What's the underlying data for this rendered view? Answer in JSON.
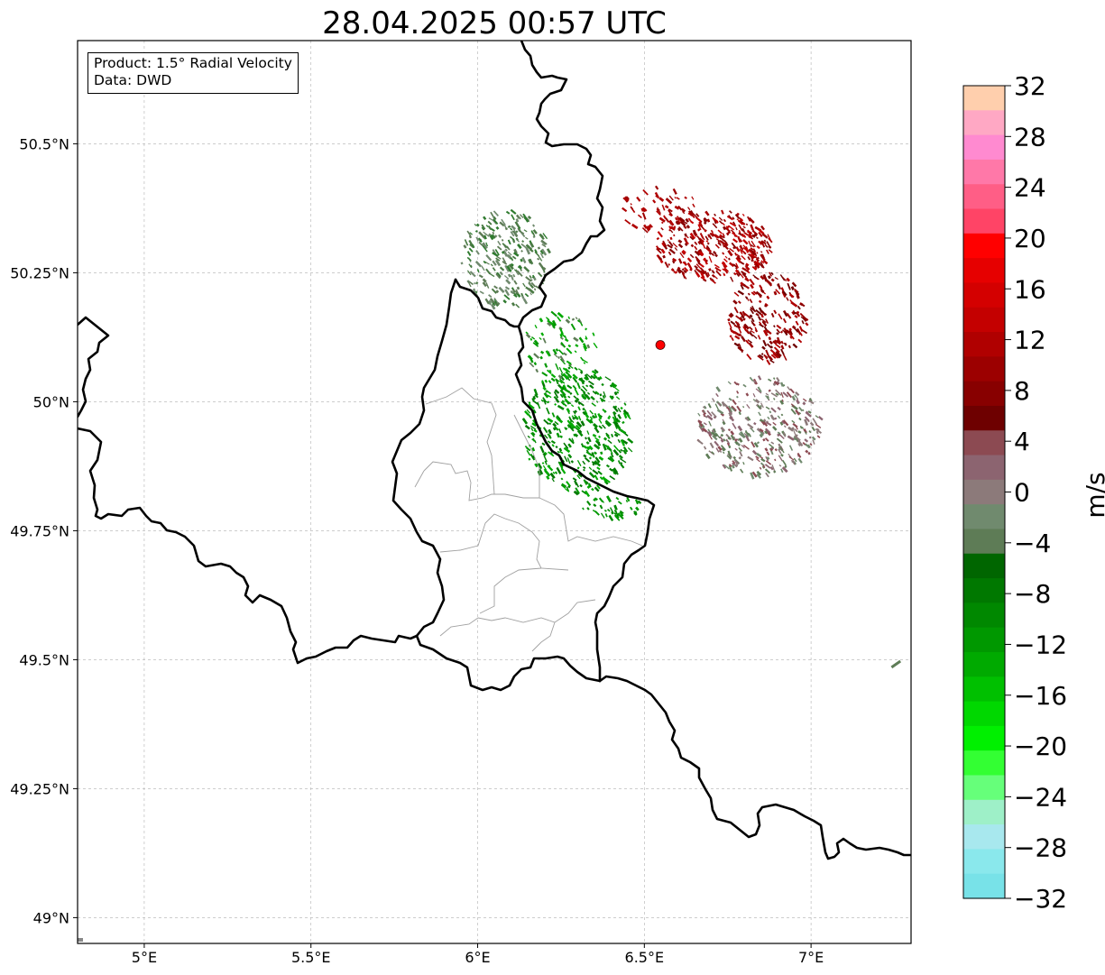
{
  "title": "28.04.2025 00:57 UTC",
  "info_box": {
    "product_line": "Product: 1.5° Radial Velocity",
    "data_line": "Data: DWD"
  },
  "map": {
    "lon_range": [
      4.8,
      7.3
    ],
    "lat_range": [
      48.95,
      50.7
    ],
    "lon_ticks": [
      {
        "value": 5.0,
        "label": "5°E"
      },
      {
        "value": 5.5,
        "label": "5.5°E"
      },
      {
        "value": 6.0,
        "label": "6°E"
      },
      {
        "value": 6.5,
        "label": "6.5°E"
      },
      {
        "value": 7.0,
        "label": "7°E"
      }
    ],
    "lat_ticks": [
      {
        "value": 50.5,
        "label": "50.5°N"
      },
      {
        "value": 50.25,
        "label": "50.25°N"
      },
      {
        "value": 50.0,
        "label": "50°N"
      },
      {
        "value": 49.75,
        "label": "49.75°N"
      },
      {
        "value": 49.5,
        "label": "49.5°N"
      },
      {
        "value": 49.25,
        "label": "49.25°N"
      },
      {
        "value": 49.0,
        "label": "49°N"
      }
    ],
    "grid": "dashed",
    "radar_site": {
      "lon": 6.548,
      "lat": 50.11,
      "color": "#ff0000"
    },
    "border_color": "#000000",
    "district_color": "#a0a0a0"
  },
  "colorbar": {
    "unit": "m/s",
    "range": [
      -32,
      32
    ],
    "step": 2,
    "tick_values": [
      32,
      28,
      24,
      20,
      16,
      12,
      8,
      4,
      0,
      -4,
      -8,
      -12,
      -16,
      -20,
      -24,
      -28,
      -32
    ],
    "tick_labels": [
      "32",
      "28",
      "24",
      "20",
      "16",
      "12",
      "8",
      "4",
      "0",
      "−4",
      "−8",
      "−12",
      "−16",
      "−20",
      "−24",
      "−28",
      "−32"
    ],
    "colors_top_to_bottom": [
      "#ffcfad",
      "#ffa8c4",
      "#ff8ad0",
      "#ff78a8",
      "#ff5e86",
      "#ff4466",
      "#ff0000",
      "#e60000",
      "#d40000",
      "#c40000",
      "#b00000",
      "#9c0000",
      "#880000",
      "#6e0000",
      "#8c4a52",
      "#8c6470",
      "#8c7a7a",
      "#708a6e",
      "#5e7c56",
      "#006600",
      "#007800",
      "#008800",
      "#009800",
      "#00aa00",
      "#00c000",
      "#00d800",
      "#00f000",
      "#33ff33",
      "#66ff7a",
      "#9ef0c8",
      "#a8e8ee",
      "#8ae8ec",
      "#78e2e8"
    ]
  }
}
